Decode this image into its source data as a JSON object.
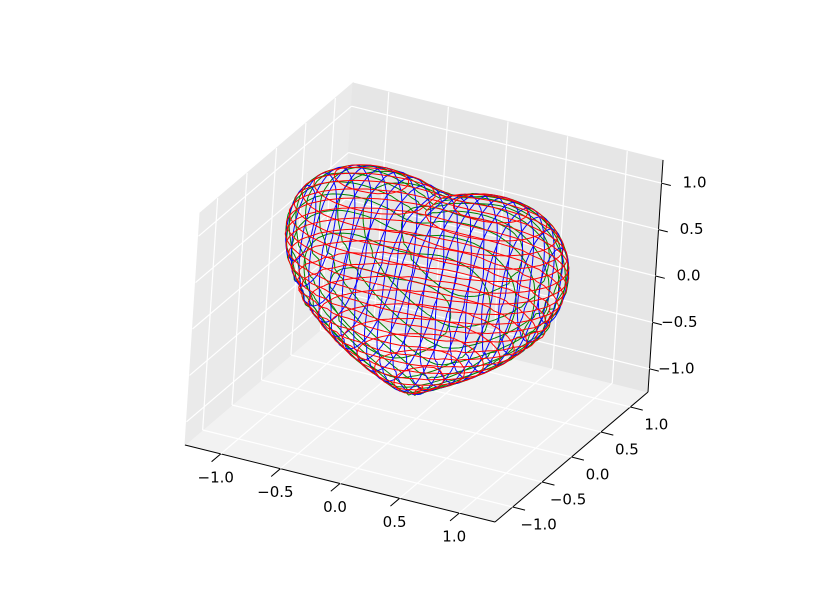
{
  "chart_data": {
    "type": "surface3d",
    "contour_colors": [
      "#ff0000",
      "#008000",
      "#0000ff"
    ],
    "xlim": [
      -1.3,
      1.3
    ],
    "ylim": [
      -1.3,
      1.3
    ],
    "zlim": [
      -1.25,
      1.25
    ],
    "xticks": [
      {
        "value": -1.0,
        "label": "−1.0"
      },
      {
        "value": -0.5,
        "label": "−0.5"
      },
      {
        "value": 0,
        "label": "0.0"
      },
      {
        "value": 0.5,
        "label": "0.5"
      },
      {
        "value": 1.0,
        "label": "1.0"
      }
    ],
    "yticks": [
      {
        "value": -1.0,
        "label": "−1.0"
      },
      {
        "value": -0.5,
        "label": "−0.5"
      },
      {
        "value": 0,
        "label": "0.0"
      },
      {
        "value": 0.5,
        "label": "0.5"
      },
      {
        "value": 1.0,
        "label": "1.0"
      }
    ],
    "zticks": [
      {
        "value": -1.0,
        "label": "−1.0"
      },
      {
        "value": -0.5,
        "label": "−0.5"
      },
      {
        "value": 0,
        "label": "0.0"
      },
      {
        "value": 0.5,
        "label": "0.5"
      },
      {
        "value": 1.0,
        "label": "1.0"
      }
    ],
    "grid": true
  }
}
